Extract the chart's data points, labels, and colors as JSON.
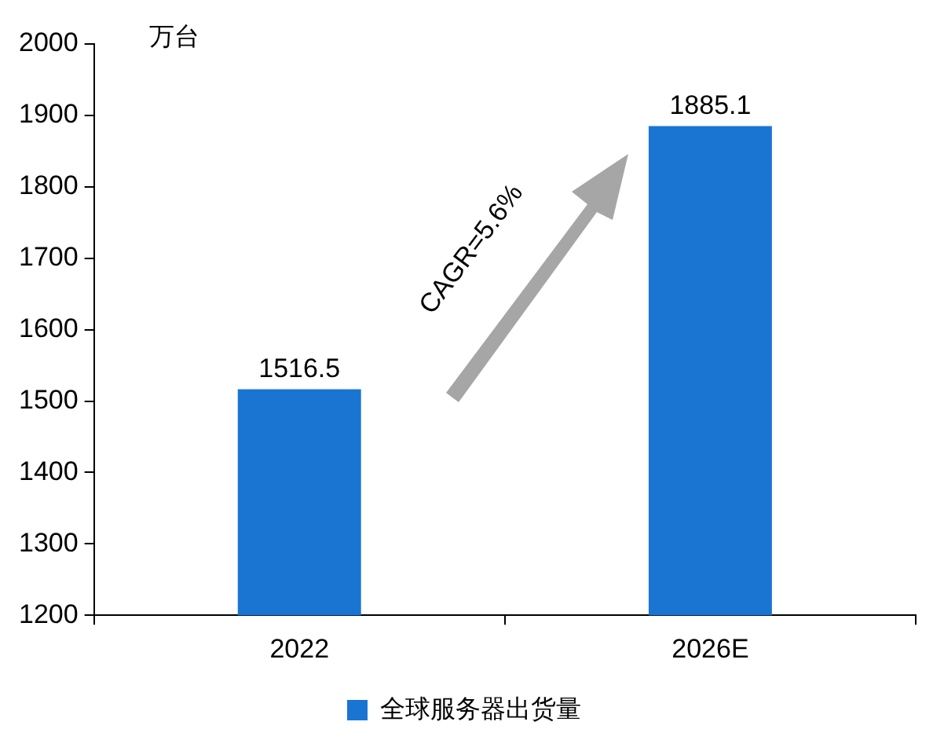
{
  "chart_data": {
    "type": "bar",
    "ylabel": "万台",
    "categories": [
      "2022",
      "2026E"
    ],
    "series": [
      {
        "name": "全球服务器出货量",
        "color": "#1a75d2",
        "values": [
          1516.5,
          1885.1
        ]
      }
    ],
    "ylim": [
      1200,
      2000
    ],
    "yticks": [
      1200,
      1300,
      1400,
      1500,
      1600,
      1700,
      1800,
      1900,
      2000
    ],
    "data_labels": true,
    "legend": "bottom",
    "grid": false,
    "annotations": [
      "CAGR=5.6%"
    ]
  }
}
